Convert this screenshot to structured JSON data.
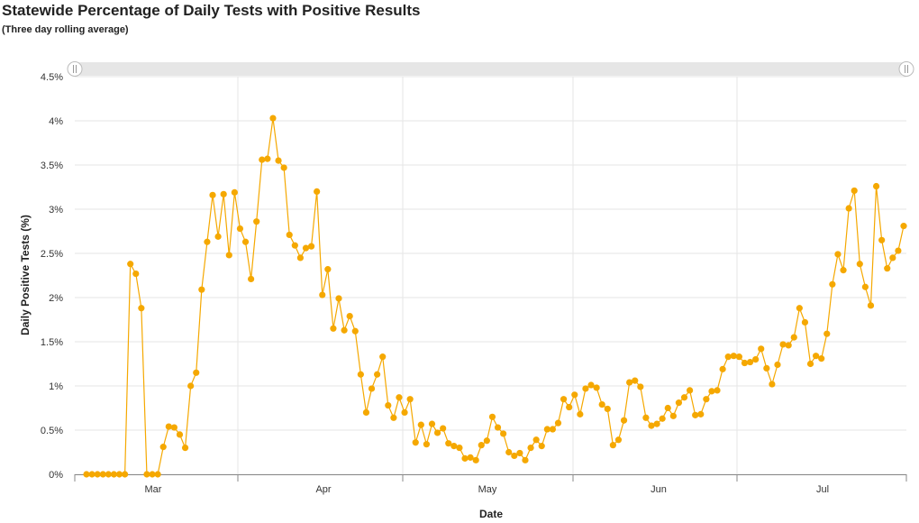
{
  "chart_data": {
    "type": "line",
    "title": "Statewide Percentage of Daily Tests with Positive Results",
    "subtitle": "(Three day rolling average)",
    "xlabel": "Date",
    "ylabel": "Daily Positive Tests (%)",
    "ylim": [
      0,
      4.5
    ],
    "yticks": [
      "0%",
      "0.5%",
      "1%",
      "1.5%",
      "2%",
      "2.5%",
      "3%",
      "3.5%",
      "4%",
      "4.5%"
    ],
    "xticks": [
      "Mar",
      "Apr",
      "May",
      "Jun",
      "Jul"
    ],
    "grid": true,
    "colors": {
      "series": "#f5a800",
      "grid": "#e6e6e6",
      "scrollbar": "#e6e6e6"
    },
    "series": [
      {
        "values": [
          0,
          0,
          0,
          0,
          0,
          0,
          0,
          0,
          2.38,
          2.27,
          1.88,
          0,
          0,
          0,
          0.31,
          0.54,
          0.53,
          0.45,
          0.3,
          1.0,
          1.15,
          2.09,
          2.63,
          3.16,
          2.69,
          3.17,
          2.48,
          3.19,
          2.78,
          2.63,
          2.21,
          2.86,
          3.56,
          3.57,
          4.03,
          3.55,
          3.47,
          2.71,
          2.59,
          2.45,
          2.56,
          2.58,
          3.2,
          2.03,
          2.32,
          1.65,
          1.99,
          1.63,
          1.79,
          1.62,
          1.13,
          0.7,
          0.97,
          1.13,
          1.33,
          0.78,
          0.64,
          0.87,
          0.7,
          0.85,
          0.36,
          0.56,
          0.34,
          0.57,
          0.47,
          0.52,
          0.35,
          0.32,
          0.3,
          0.18,
          0.19,
          0.16,
          0.33,
          0.38,
          0.65,
          0.53,
          0.46,
          0.25,
          0.21,
          0.24,
          0.16,
          0.3,
          0.39,
          0.32,
          0.51,
          0.51,
          0.58,
          0.85,
          0.76,
          0.9,
          0.68,
          0.97,
          1.01,
          0.98,
          0.79,
          0.74,
          0.33,
          0.39,
          0.61,
          1.04,
          1.06,
          0.99,
          0.64,
          0.55,
          0.57,
          0.63,
          0.75,
          0.66,
          0.81,
          0.87,
          0.95,
          0.67,
          0.68,
          0.85,
          0.94,
          0.95,
          1.19,
          1.33,
          1.34,
          1.33,
          1.26,
          1.27,
          1.3,
          1.42,
          1.2,
          1.02,
          1.24,
          1.47,
          1.46,
          1.55,
          1.88,
          1.72,
          1.25,
          1.34,
          1.31,
          1.59,
          2.15,
          2.49,
          2.31,
          3.01,
          3.21,
          2.38,
          2.12,
          1.91,
          3.26,
          2.65,
          2.33,
          2.45,
          2.53,
          2.81
        ]
      }
    ]
  }
}
